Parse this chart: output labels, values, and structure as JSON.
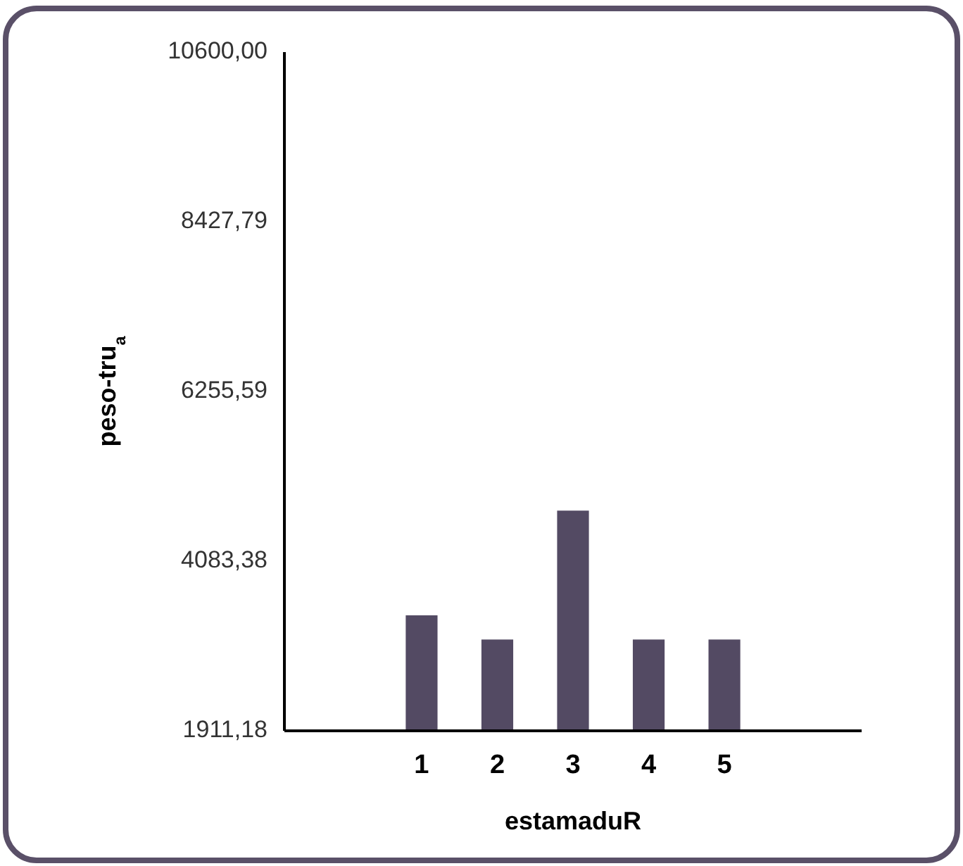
{
  "chart_data": {
    "type": "bar",
    "xlabel": "estamaduR",
    "ylabel": "peso-tru$_{a}$",
    "categories": [
      "1",
      "2",
      "3",
      "4",
      "5"
    ],
    "values": [
      3390,
      3080,
      4730,
      3080,
      3080
    ],
    "color": "#534a63",
    "ylim": [
      1911.18,
      10600
    ],
    "yticks": [
      {
        "value": 1911.18,
        "label": "1911,18"
      },
      {
        "value": 4083.38,
        "label": "4083,38"
      },
      {
        "value": 6255.59,
        "label": "6255,59"
      },
      {
        "value": 8427.79,
        "label": "8427,79"
      },
      {
        "value": 10600,
        "label": "10600,00"
      }
    ],
    "grid": false
  }
}
